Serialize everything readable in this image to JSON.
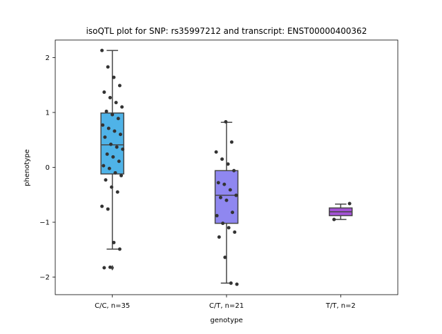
{
  "chart_data": {
    "type": "box",
    "title": "isoQTL plot for SNP: rs35997212 and transcript: ENST00000400362",
    "xlabel": "genotype",
    "ylabel": "phenotype",
    "ylim": [
      -2.32,
      2.32
    ],
    "yticks": [
      2,
      1,
      0,
      -1,
      -2
    ],
    "ytick_labels": [
      "2",
      "1",
      "0",
      "−1",
      "−2"
    ],
    "grid": false,
    "categories": [
      "C/C, n=35",
      "C/T, n=21",
      "T/T, n=2"
    ],
    "boxes": [
      {
        "category": "C/C, n=35",
        "color": "#4fb3e8",
        "q1": -0.12,
        "median": 0.41,
        "q3": 0.99,
        "whisker_low": -1.49,
        "whisker_high": 2.13,
        "outliers": [
          -1.83
        ]
      },
      {
        "category": "C/T, n=21",
        "color": "#8f87f0",
        "q1": -1.02,
        "median": -0.51,
        "q3": -0.06,
        "whisker_low": -2.11,
        "whisker_high": 0.82,
        "outliers": []
      },
      {
        "category": "T/T, n=2",
        "color": "#a452d6",
        "q1": -0.88,
        "median": -0.81,
        "q3": -0.74,
        "whisker_low": -0.95,
        "whisker_high": -0.67,
        "outliers": []
      }
    ],
    "points": [
      {
        "category": "C/C, n=35",
        "values": [
          2.13,
          1.83,
          1.64,
          1.49,
          1.37,
          1.27,
          1.18,
          1.1,
          1.02,
          0.96,
          0.89,
          0.77,
          0.71,
          0.66,
          0.6,
          0.55,
          0.42,
          0.37,
          0.33,
          0.24,
          0.19,
          0.11,
          0.03,
          -0.02,
          -0.1,
          -0.15,
          -0.23,
          -0.36,
          -0.45,
          -0.71,
          -0.76,
          -1.37,
          -1.49,
          -1.83,
          -1.82
        ]
      },
      {
        "category": "C/T, n=21",
        "values": [
          0.83,
          0.46,
          0.28,
          0.15,
          0.06,
          -0.06,
          -0.28,
          -0.31,
          -0.41,
          -0.51,
          -0.55,
          -0.6,
          -0.82,
          -0.88,
          -1.02,
          -1.1,
          -1.18,
          -1.27,
          -1.64,
          -2.11,
          -2.13
        ]
      },
      {
        "category": "T/T, n=2",
        "values": [
          -0.66,
          -0.95
        ]
      }
    ]
  }
}
